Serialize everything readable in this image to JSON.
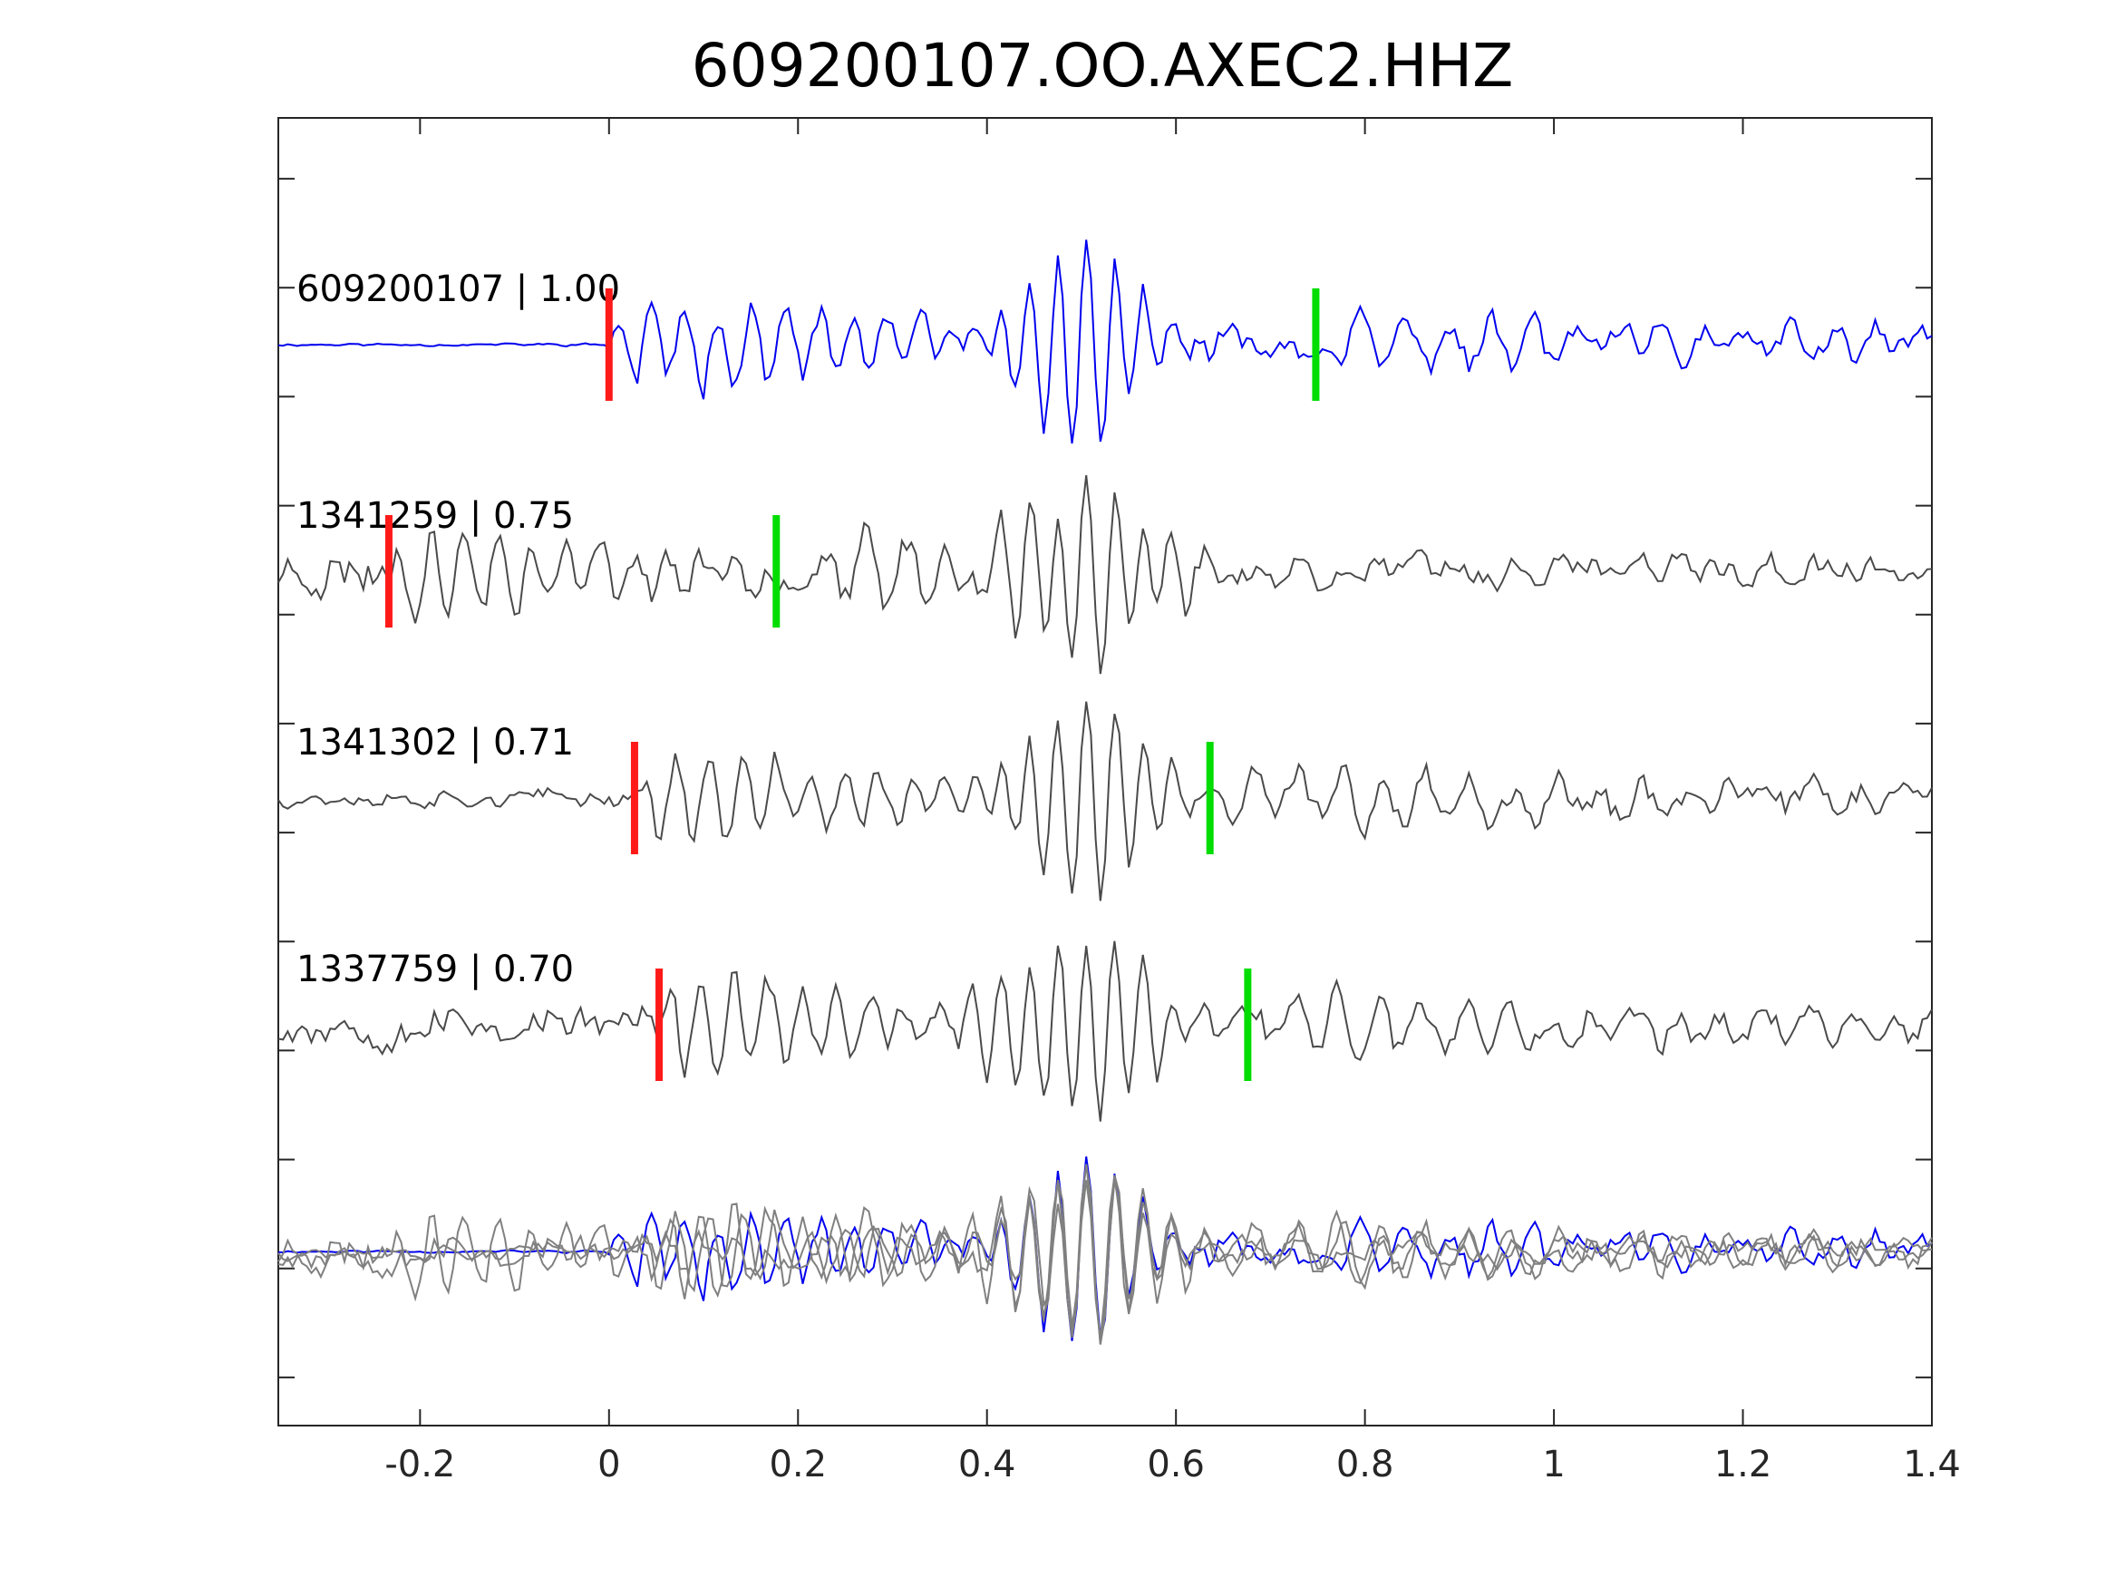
{
  "chart_data": {
    "type": "line",
    "title": "609200107.OO.AXEC2.HHZ",
    "xlabel": "",
    "ylabel": "",
    "xlim": [
      -0.35,
      1.4
    ],
    "xticks": [
      -0.2,
      0,
      0.2,
      0.4,
      0.6,
      0.8,
      1,
      1.2,
      1.4
    ],
    "xtick_labels": [
      "-0.2",
      "0",
      "0.2",
      "0.4",
      "0.6",
      "0.8",
      "1",
      "1.2",
      "1.4"
    ],
    "y_ticks_count": 12,
    "grid": false,
    "legend": "none",
    "colors": {
      "template": "#0000ee",
      "neighbor": "#4a4a4a",
      "stack_neighbor": "#808080",
      "p_pick": "#ff1a1a",
      "s_pick": "#00dd00",
      "axis": "#262626"
    },
    "traces": [
      {
        "label": "609200107 | 1.00",
        "event_id": "609200107",
        "correlation": 1.0,
        "p_pick": 0.0,
        "s_pick": 0.748,
        "color": "template",
        "noise_before_p": 0.02,
        "seed": 11
      },
      {
        "label": "1341259 | 0.75",
        "event_id": "1341259",
        "correlation": 0.75,
        "p_pick": -0.233,
        "s_pick": 0.177,
        "color": "neighbor",
        "noise_before_p": 0.35,
        "seed": 23
      },
      {
        "label": "1341302 | 0.71",
        "event_id": "1341302",
        "correlation": 0.71,
        "p_pick": 0.027,
        "s_pick": 0.636,
        "color": "neighbor",
        "noise_before_p": 0.12,
        "seed": 37
      },
      {
        "label": "1337759 | 0.70",
        "event_id": "1337759",
        "correlation": 0.7,
        "p_pick": 0.053,
        "s_pick": 0.676,
        "color": "neighbor",
        "noise_before_p": 0.3,
        "seed": 53
      }
    ],
    "stack": {
      "description_visible": false,
      "includes": [
        "609200107",
        "1341259",
        "1341302",
        "1337759"
      ]
    }
  }
}
